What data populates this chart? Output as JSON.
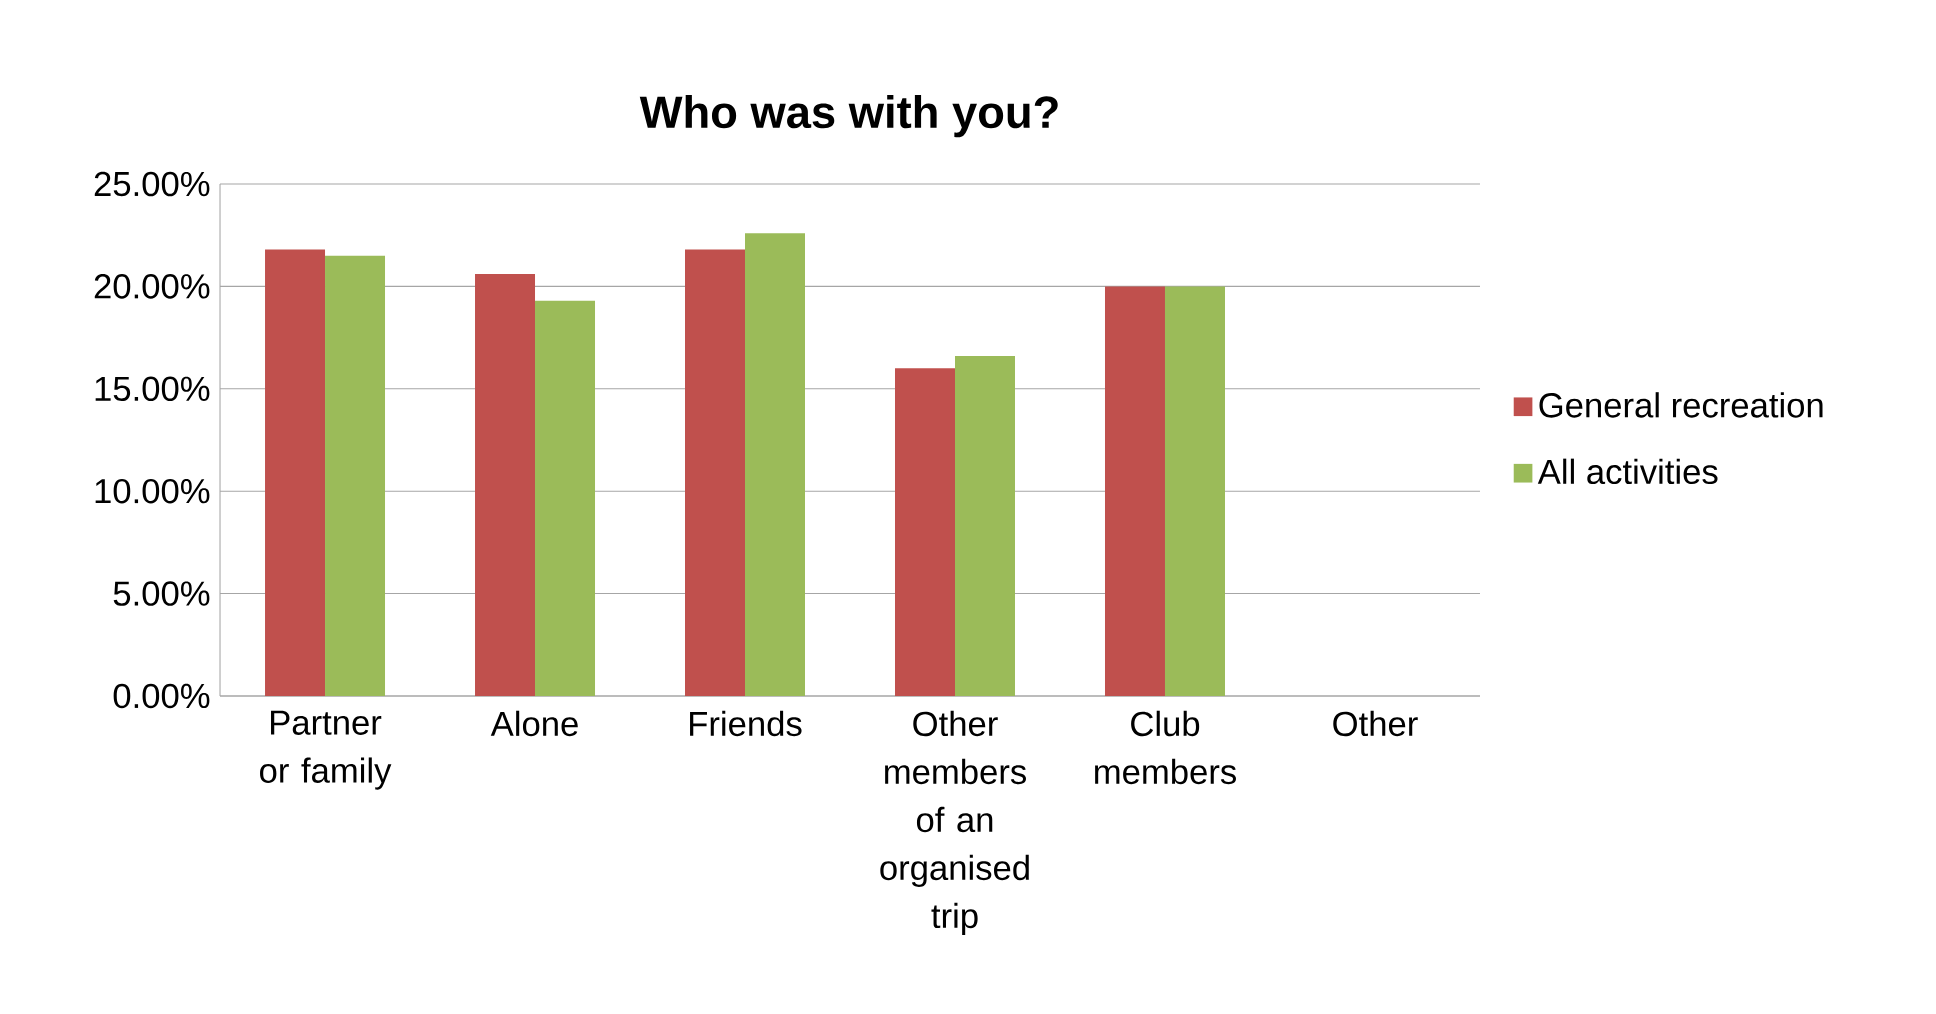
{
  "chart_data": {
    "type": "bar",
    "title": "Who was with you?",
    "categories": [
      "Partner or family",
      "Alone",
      "Friends",
      "Other members of an organised trip",
      "Club members",
      "Other"
    ],
    "series": [
      {
        "name": "General recreation",
        "color": "#c0504d",
        "values": [
          21.8,
          20.6,
          21.8,
          16.0,
          20.0,
          0
        ]
      },
      {
        "name": "All activities",
        "color": "#9bbb59",
        "values": [
          21.5,
          19.3,
          22.6,
          16.6,
          20.0,
          0
        ]
      }
    ],
    "ylim": [
      0,
      25
    ],
    "yticks": [
      {
        "value": 0,
        "label": "0.00%"
      },
      {
        "value": 5,
        "label": "5.00%"
      },
      {
        "value": 10,
        "label": "10.00%"
      },
      {
        "value": 15,
        "label": "15.00%"
      },
      {
        "value": 20,
        "label": "20.00%"
      },
      {
        "value": 25,
        "label": "25.00%"
      }
    ],
    "grid": "y",
    "legend": "right"
  }
}
